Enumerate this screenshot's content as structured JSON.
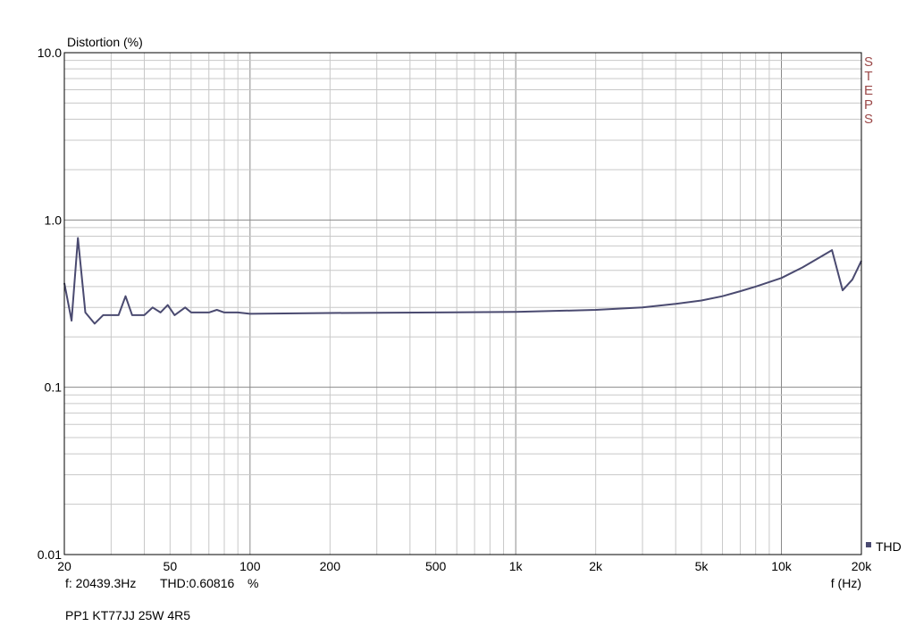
{
  "chart_data": {
    "type": "line",
    "ylabel": "Distortion (%)",
    "xlabel": "f (Hz)",
    "xscale": "log",
    "yscale": "log",
    "xlim": [
      20,
      20000
    ],
    "ylim": [
      0.01,
      10
    ],
    "grid": true,
    "x_ticks": [
      {
        "v": 20,
        "label": "20"
      },
      {
        "v": 50,
        "label": "50"
      },
      {
        "v": 100,
        "label": "100"
      },
      {
        "v": 200,
        "label": "200"
      },
      {
        "v": 500,
        "label": "500"
      },
      {
        "v": 1000,
        "label": "1k"
      },
      {
        "v": 2000,
        "label": "2k"
      },
      {
        "v": 5000,
        "label": "5k"
      },
      {
        "v": 10000,
        "label": "10k"
      },
      {
        "v": 20000,
        "label": "20k"
      }
    ],
    "y_ticks": [
      {
        "v": 10,
        "label": "10.0"
      },
      {
        "v": 1,
        "label": "1.0"
      },
      {
        "v": 0.1,
        "label": "0.1"
      },
      {
        "v": 0.01,
        "label": "0.01"
      }
    ],
    "series": [
      {
        "name": "THD",
        "color": "#4a4a70",
        "points": [
          [
            20,
            0.42
          ],
          [
            21.3,
            0.25
          ],
          [
            22.5,
            0.78
          ],
          [
            24,
            0.28
          ],
          [
            26,
            0.24
          ],
          [
            28,
            0.27
          ],
          [
            32,
            0.27
          ],
          [
            34,
            0.35
          ],
          [
            36,
            0.27
          ],
          [
            40,
            0.27
          ],
          [
            43,
            0.3
          ],
          [
            46,
            0.28
          ],
          [
            49,
            0.31
          ],
          [
            52,
            0.27
          ],
          [
            57,
            0.3
          ],
          [
            60,
            0.28
          ],
          [
            70,
            0.28
          ],
          [
            75,
            0.29
          ],
          [
            80,
            0.28
          ],
          [
            90,
            0.28
          ],
          [
            100,
            0.275
          ],
          [
            200,
            0.278
          ],
          [
            500,
            0.28
          ],
          [
            1000,
            0.282
          ],
          [
            2000,
            0.29
          ],
          [
            3000,
            0.3
          ],
          [
            4000,
            0.315
          ],
          [
            5000,
            0.33
          ],
          [
            6000,
            0.35
          ],
          [
            7000,
            0.375
          ],
          [
            8000,
            0.4
          ],
          [
            10000,
            0.45
          ],
          [
            12000,
            0.52
          ],
          [
            14000,
            0.6
          ],
          [
            15500,
            0.66
          ],
          [
            17000,
            0.38
          ],
          [
            18500,
            0.44
          ],
          [
            20000,
            0.57
          ]
        ]
      }
    ],
    "legend": {
      "label": "THD",
      "color": "#4a4a70",
      "position": "bottom-right"
    }
  },
  "side_text": "STEPS",
  "side_text_color": "#9c4a4a",
  "readout": {
    "freq": "f: 20439.3Hz",
    "thd": "THD:0.60816",
    "unit": "%"
  },
  "caption": "PP1 KT77JJ 25W 4R5"
}
